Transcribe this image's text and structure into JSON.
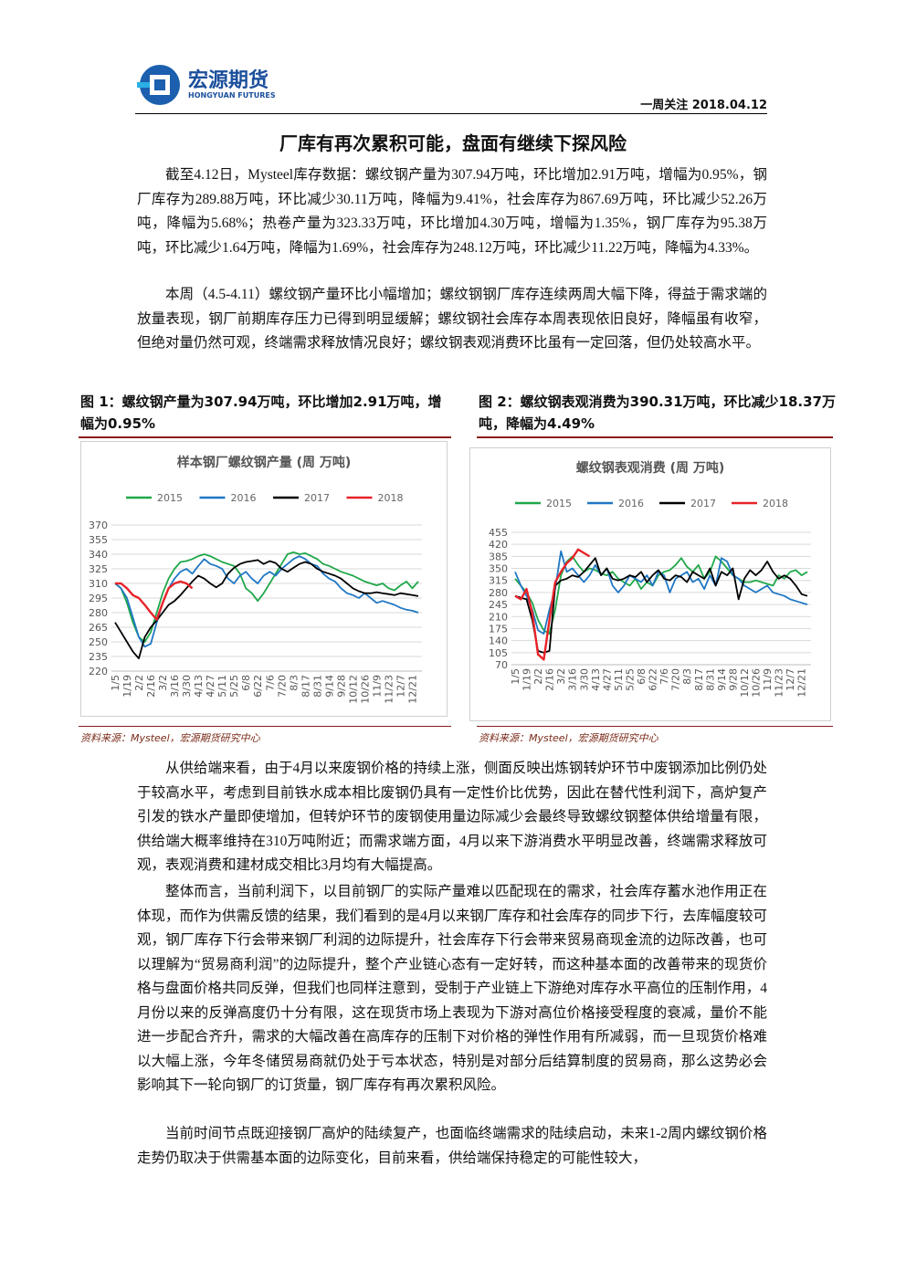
{
  "header": {
    "logo_cn": "宏源期货",
    "logo_en": "HONGYUAN FUTURES",
    "tag": "一周关注 2018.04.12"
  },
  "title": "厂库有再次累积可能，盘面有继续下探风险",
  "paragraphs": [
    "截至4.12日，Mysteel库存数据：螺纹钢产量为307.94万吨，环比增加2.91万吨，增幅为0.95%，钢厂库存为289.88万吨，环比减少30.11万吨，降幅为9.41%，社会库存为867.69万吨，环比减少52.26万吨，降幅为5.68%；热卷产量为323.33万吨，环比增加4.30万吨，增幅为1.35%，钢厂库存为95.38万吨，环比减少1.64万吨，降幅为1.69%，社会库存为248.12万吨，环比减少11.22万吨，降幅为4.33%。",
    "本周（4.5-4.11）螺纹钢产量环比小幅增加；螺纹钢钢厂库存连续两周大幅下降，得益于需求端的放量表现，钢厂前期库存压力已得到明显缓解；螺纹钢社会库存本周表现依旧良好，降幅虽有收窄，但绝对量仍然可观，终端需求释放情况良好；螺纹钢表观消费环比虽有一定回落，但仍处较高水平。"
  ],
  "figures": [
    {
      "caption": "图 1：螺纹钢产量为307.94万吨，环比增加2.91万吨，增幅为0.95%",
      "source": "资料来源：Mysteel，宏源期货研究中心"
    },
    {
      "caption": "图 2：螺纹钢表观消费为390.31万吨，环比减少18.37万吨，降幅为4.49%",
      "source": "资料来源：Mysteel，宏源期货研究中心"
    }
  ],
  "paragraphs_after": [
    "从供给端来看，由于4月以来废钢价格的持续上涨，侧面反映出炼钢转炉环节中废钢添加比例仍处于较高水平，考虑到目前铁水成本相比废钢仍具有一定性价比优势，因此在替代性利润下，高炉复产引发的铁水产量即使增加，但转炉环节的废钢使用量边际减少会最终导致螺纹钢整体供给增量有限，供给端大概率维持在310万吨附近；而需求端方面，4月以来下游消费水平明显改善，终端需求释放可观，表观消费和建材成交相比3月均有大幅提高。",
    "整体而言，当前利润下，以目前钢厂的实际产量难以匹配现在的需求，社会库存蓄水池作用正在体现，而作为供需反馈的结果，我们看到的是4月以来钢厂库存和社会库存的同步下行，去库幅度较可观，钢厂库存下行会带来钢厂利润的边际提升，社会库存下行会带来贸易商现金流的边际改善，也可以理解为“贸易商利润”的边际提升，整个产业链心态有一定好转，而这种基本面的改善带来的现货价格与盘面价格共同反弹，但我们也同样注意到，受制于产业链上下游绝对库存水平高位的压制作用，4月份以来的反弹高度仍十分有限，这在现货市场上表现为下游对高位价格接受程度的衰减，量价不能进一步配合齐升，需求的大幅改善在高库存的压制下对价格的弹性作用有所减弱，而一旦现货价格难以大幅上涨，今年冬储贸易商就仍处于亏本状态，特别是对部分后结算制度的贸易商，那么这势必会影响其下一轮向钢厂的订货量，钢厂库存有再次累积风险。",
    "当前时间节点既迎接钢厂高炉的陆续复产，也面临终端需求的陆续启动，未来1-2周内螺纹钢价格走势仍取决于供需基本面的边际变化，目前来看，供给端保持稳定的可能性较大，"
  ],
  "chart_data": [
    {
      "type": "line",
      "title": "样本钢厂螺纹钢产量 (周 万吨)",
      "categories": [
        "1/5",
        null,
        "1/19",
        null,
        "2/2",
        null,
        "2/16",
        null,
        "3/2",
        null,
        "3/16",
        null,
        "3/30",
        null,
        "4/13",
        null,
        "4/27",
        null,
        "5/11",
        null,
        "5/25",
        null,
        "6/8",
        null,
        "6/22",
        null,
        "7/6",
        null,
        "7/20",
        null,
        "8/3",
        null,
        "8/17",
        null,
        "8/31",
        null,
        "9/14",
        null,
        "9/28",
        null,
        "10/12",
        null,
        "10/26",
        null,
        "11/9",
        null,
        "11/23",
        null,
        "12/7",
        null,
        "12/21",
        null
      ],
      "ylim": [
        220,
        370
      ],
      "yticks": [
        220,
        235,
        250,
        265,
        280,
        295,
        310,
        325,
        340,
        355,
        370
      ],
      "grid": true,
      "series": [
        {
          "name": "2015",
          "color": "#1fa84a",
          "values": [
            310,
            305,
            290,
            270,
            255,
            250,
            260,
            280,
            300,
            315,
            325,
            332,
            333,
            335,
            338,
            340,
            338,
            335,
            332,
            330,
            328,
            320,
            305,
            300,
            292,
            300,
            310,
            320,
            330,
            340,
            342,
            340,
            341,
            338,
            335,
            330,
            328,
            325,
            322,
            320,
            318,
            315,
            312,
            310,
            308,
            310,
            305,
            303,
            308,
            312,
            305,
            312
          ]
        },
        {
          "name": "2016",
          "color": "#1f77c4",
          "values": [
            310,
            305,
            295,
            275,
            255,
            245,
            248,
            270,
            290,
            305,
            315,
            322,
            325,
            320,
            328,
            335,
            330,
            328,
            325,
            315,
            310,
            318,
            322,
            315,
            310,
            318,
            322,
            318,
            325,
            330,
            335,
            338,
            335,
            330,
            328,
            320,
            315,
            312,
            305,
            300,
            298,
            295,
            300,
            295,
            290,
            292,
            290,
            288,
            285,
            283,
            282,
            280
          ]
        },
        {
          "name": "2017",
          "color": "#000000",
          "values": [
            270,
            260,
            250,
            240,
            233,
            255,
            265,
            272,
            280,
            288,
            292,
            298,
            305,
            312,
            318,
            315,
            310,
            306,
            310,
            320,
            326,
            330,
            332,
            333,
            334,
            330,
            333,
            331,
            325,
            322,
            326,
            330,
            332,
            330,
            325,
            322,
            320,
            318,
            315,
            310,
            305,
            302,
            300,
            300,
            301,
            300,
            299,
            298,
            300,
            299,
            298,
            297
          ]
        },
        {
          "name": "2018",
          "color": "#e8232a",
          "values": [
            310,
            310,
            305,
            298,
            295,
            288,
            280,
            273,
            290,
            305,
            310,
            312,
            310,
            305,
            null,
            null,
            null,
            null,
            null,
            null,
            null,
            null,
            null,
            null,
            null,
            null,
            null,
            null,
            null,
            null,
            null,
            null,
            null,
            null,
            null,
            null,
            null,
            null,
            null,
            null,
            null,
            null,
            null,
            null,
            null,
            null,
            null,
            null,
            null,
            null,
            null,
            null
          ]
        }
      ]
    },
    {
      "type": "line",
      "title": "螺纹钢表观消费 (周 万吨)",
      "categories": [
        "1/5",
        null,
        "1/19",
        null,
        "2/2",
        null,
        "2/16",
        null,
        "3/2",
        null,
        "3/16",
        null,
        "3/30",
        null,
        "4/13",
        null,
        "4/27",
        null,
        "5/11",
        null,
        "5/25",
        null,
        "6/8",
        null,
        "6/22",
        null,
        "7/6",
        null,
        "7/20",
        null,
        "8/3",
        null,
        "8/17",
        null,
        "8/31",
        null,
        "9/14",
        null,
        "9/28",
        null,
        "10/12",
        null,
        "10/26",
        null,
        "11/9",
        null,
        "11/23",
        null,
        "12/7",
        null,
        "12/21",
        null
      ],
      "ylim": [
        70,
        455
      ],
      "yticks": [
        70,
        105,
        140,
        175,
        210,
        245,
        280,
        315,
        350,
        385,
        420,
        455
      ],
      "grid": true,
      "series": [
        {
          "name": "2015",
          "color": "#1fa84a",
          "values": [
            320,
            300,
            280,
            250,
            200,
            170,
            160,
            230,
            330,
            370,
            385,
            360,
            340,
            350,
            345,
            335,
            330,
            340,
            320,
            310,
            300,
            320,
            290,
            310,
            300,
            330,
            340,
            345,
            360,
            380,
            355,
            340,
            360,
            320,
            340,
            385,
            370,
            350,
            330,
            320,
            310,
            310,
            315,
            310,
            305,
            300,
            330,
            320,
            340,
            345,
            330,
            340
          ]
        },
        {
          "name": "2016",
          "color": "#1f77c4",
          "values": [
            340,
            300,
            270,
            230,
            170,
            160,
            230,
            290,
            400,
            340,
            350,
            330,
            310,
            330,
            360,
            330,
            350,
            300,
            280,
            300,
            330,
            320,
            310,
            330,
            300,
            340,
            330,
            280,
            320,
            330,
            340,
            310,
            320,
            290,
            330,
            300,
            380,
            370,
            330,
            320,
            300,
            290,
            280,
            290,
            300,
            280,
            275,
            270,
            260,
            255,
            250,
            245
          ]
        },
        {
          "name": "2017",
          "color": "#000000",
          "values": [
            270,
            265,
            260,
            200,
            110,
            105,
            110,
            300,
            315,
            320,
            330,
            325,
            340,
            360,
            380,
            330,
            350,
            320,
            315,
            320,
            330,
            325,
            340,
            310,
            330,
            345,
            320,
            315,
            330,
            325,
            310,
            340,
            330,
            320,
            350,
            300,
            340,
            330,
            350,
            260,
            320,
            345,
            330,
            345,
            370,
            340,
            320,
            330,
            320,
            300,
            275,
            270
          ]
        },
        {
          "name": "2018",
          "color": "#e8232a",
          "values": [
            270,
            260,
            290,
            220,
            100,
            85,
            200,
            310,
            340,
            365,
            380,
            405,
            395,
            385,
            null,
            null,
            null,
            null,
            null,
            null,
            null,
            null,
            null,
            null,
            null,
            null,
            null,
            null,
            null,
            null,
            null,
            null,
            null,
            null,
            null,
            null,
            null,
            null,
            null,
            null,
            null,
            null,
            null,
            null,
            null,
            null,
            null,
            null,
            null,
            null,
            null,
            null
          ]
        }
      ]
    }
  ]
}
